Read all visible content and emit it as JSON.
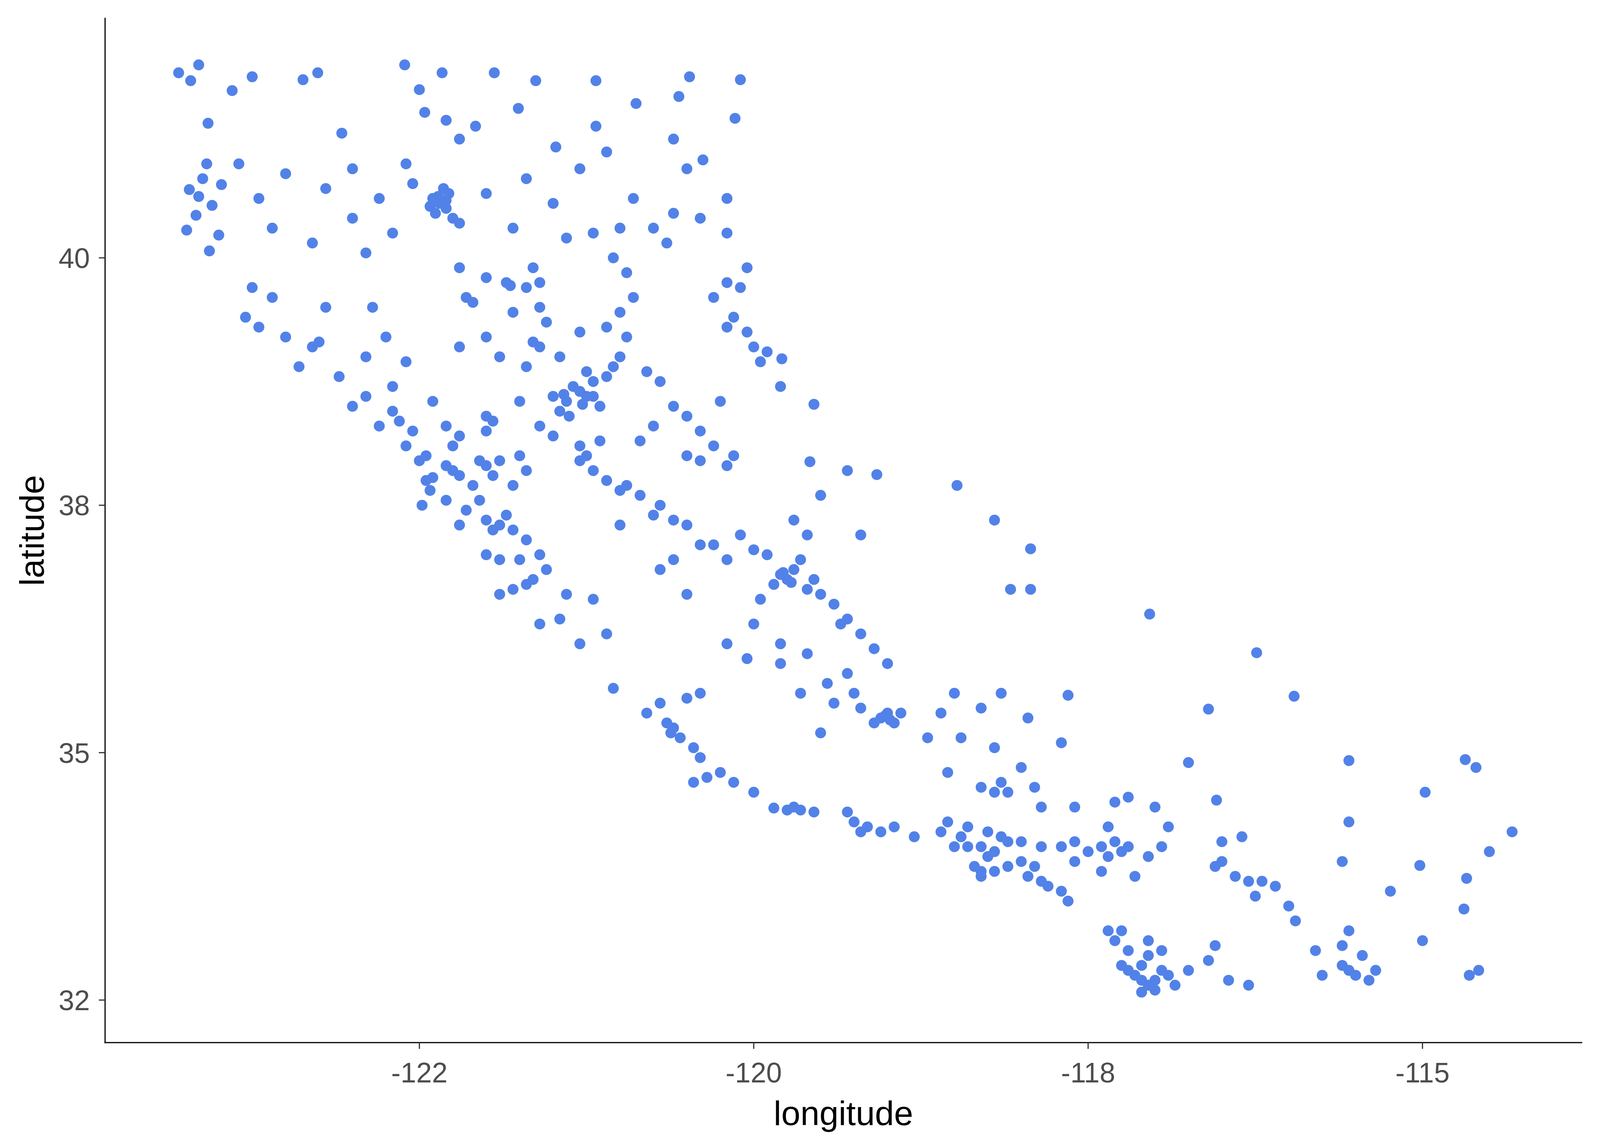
{
  "chart_data": {
    "type": "scatter",
    "x_label": "longitude",
    "y_label": "latitude",
    "color": "#5282e8",
    "marker": "circle",
    "grid": false,
    "xlim": [
      -124.85,
      -113.81
    ],
    "ylim": [
      32.07,
      42.42
    ],
    "xticks": [
      {
        "value": -122.5,
        "label": "-122"
      },
      -120,
      {
        "value": -117.5,
        "label": "-118"
      },
      -115
    ],
    "yticks": [
      {
        "value": 32.5,
        "label": "32"
      },
      35,
      {
        "value": 37.5,
        "label": "38"
      },
      40
    ],
    "x": [
      -124.3,
      -124.21,
      -124.15,
      -124.22,
      -124.09,
      -124.05,
      -124.17,
      -124.24,
      -123.98,
      -123.9,
      -124.08,
      -124.07,
      -124.0,
      -124.12,
      -124.15,
      -123.75,
      -123.37,
      -123.26,
      -122.61,
      -122.33,
      -121.94,
      -121.63,
      -121.18,
      -120.48,
      -120.1,
      -122.46,
      -122.3,
      -121.76,
      -122.08,
      -121.18,
      -120.88,
      -120.56,
      -120.14,
      -123.08,
      -121.48,
      -121.1,
      -120.38,
      -122.5,
      -122.2,
      -122.4,
      -122.35,
      -122.3,
      -122.38,
      -122.28,
      -122.25,
      -122.32,
      -122.2,
      -122.42,
      -122.36,
      -122.3,
      -123.5,
      -123.2,
      -123.0,
      -122.8,
      -122.55,
      -123.6,
      -123.3,
      -122.9,
      -123.7,
      -123.0,
      -122.7,
      -123.85,
      -122.6,
      -122.0,
      -121.7,
      -121.5,
      -121.3,
      -121.2,
      -121.0,
      -120.75,
      -120.6,
      -120.4,
      -120.2,
      -121.8,
      -121.4,
      -120.9,
      -120.6,
      -120.5,
      -120.2,
      -120.65,
      -121.05,
      -120.95,
      -122.0,
      -121.85,
      -121.7,
      -121.6,
      -121.55,
      -121.8,
      -121.65,
      -122.1,
      -121.82,
      -121.6,
      -122.2,
      -122.15,
      -122.0,
      -121.9,
      -121.7,
      -121.75,
      -122.0,
      -121.6,
      -121.5,
      -122.2,
      -121.65,
      -121.6,
      -121.45,
      -121.3,
      -121.1,
      -121.0,
      -120.9,
      -121.3,
      -121.25,
      -121.4,
      -121.35,
      -121.2,
      -121.1,
      -121.05,
      -121.0,
      -121.15,
      -121.45,
      -121.25,
      -120.95,
      -120.8,
      -120.7,
      -121.5,
      -121.42,
      -121.28,
      -121.38,
      -121.2,
      -120.2,
      -120.05,
      -120.0,
      -119.95,
      -120.15,
      -120.3,
      -120.1,
      -119.9,
      -120.05,
      -120.2,
      -123.8,
      -123.7,
      -123.5,
      -123.3,
      -123.4,
      -123.6,
      -123.2,
      -123.25,
      -123.75,
      -123.1,
      -122.9,
      -122.75,
      -122.6,
      -122.85,
      -122.7,
      -122.8,
      -122.55,
      -122.3,
      -122.25,
      -122.45,
      -122.6,
      -122.9,
      -123.0,
      -122.7,
      -122.4,
      -122.65,
      -122.5,
      -122.2,
      -122.0,
      -121.95,
      -122.45,
      -122.4,
      -122.2,
      -122.1,
      -122.25,
      -122.0,
      -121.95,
      -122.05,
      -122.3,
      -122.15,
      -122.0,
      -121.9,
      -121.85,
      -121.8,
      -121.95,
      -122.0,
      -121.9,
      -121.75,
      -121.65,
      -121.8,
      -121.9,
      -121.7,
      -121.55,
      -121.6,
      -121.7,
      -122.42,
      -122.05,
      -121.8,
      -121.9,
      -122.3,
      -122.48,
      -122.2,
      -121.75,
      -121.7,
      -121.3,
      -121.25,
      -121.2,
      -121.0,
      -120.95,
      -120.85,
      -121.1,
      -120.7,
      -120.75,
      -120.6,
      -121.0,
      -121.3,
      -121.15,
      -120.6,
      -120.4,
      -120.3,
      -120.5,
      -120.25,
      -120.5,
      -120.4,
      -120.2,
      -120.15,
      -120.75,
      -120.85,
      -119.8,
      -119.55,
      -119.58,
      -119.79,
      -119.08,
      -119.8,
      -119.75,
      -119.7,
      -119.85,
      -119.6,
      -119.65,
      -119.9,
      -120.0,
      -119.5,
      -119.4,
      -119.35,
      -119.3,
      -119.2,
      -120.2,
      -119.95,
      -120.3,
      -120.5,
      -119.78,
      -119.72,
      -119.55,
      -119.7,
      -119.5,
      -119.3,
      -119.6,
      -119.2,
      -118.48,
      -118.2,
      -117.93,
      -117.93,
      -118.08,
      -117.04,
      -120.4,
      -120.1,
      -120.6,
      -120.7,
      -120.5,
      -120.0,
      -119.8,
      -119.6,
      -119.8,
      -119.65,
      -119.45,
      -120.2,
      -120.05,
      -119.1,
      -119.0,
      -121.6,
      -121.45,
      -121.3,
      -121.1,
      -121.4,
      -121.2,
      -119.05,
      -119.0,
      -118.95,
      -119.1,
      -119.2,
      -118.9,
      -119.3,
      -119.25,
      -119.5,
      -119.4,
      -119.02,
      -118.98,
      -118.45,
      -118.2,
      -117.7,
      -118.6,
      -118.15,
      -118.3,
      -117.95,
      -118.5,
      -118.7,
      -118.0,
      -117.65,
      -118.15,
      -118.1,
      -118.2,
      -117.9,
      -118.3,
      -118.55,
      -120.65,
      -120.6,
      -120.55,
      -120.45,
      -120.4,
      -120.7,
      -120.8,
      -121.05,
      -120.4,
      -120.25,
      -120.35,
      -120.45,
      -120.15,
      -120.62,
      -120.5,
      -119.85,
      -119.75,
      -119.65,
      -119.55,
      -119.7,
      -120.0,
      -119.25,
      -119.2,
      -119.15,
      -119.05,
      -118.95,
      -119.3,
      -118.8,
      -118.6,
      -118.5,
      -118.4,
      -118.3,
      -118.25,
      -118.2,
      -118.35,
      -118.3,
      -118.2,
      -118.1,
      -118.0,
      -117.9,
      -117.95,
      -117.85,
      -117.8,
      -117.7,
      -117.65,
      -118.1,
      -118.0,
      -117.85,
      -117.7,
      -117.6,
      -117.5,
      -117.4,
      -117.3,
      -117.25,
      -117.35,
      -117.2,
      -117.6,
      -118.45,
      -118.25,
      -118.15,
      -118.55,
      -118.4,
      -118.3,
      -117.4,
      -117.15,
      -117.05,
      -116.95,
      -117.85,
      -117.6,
      -117.3,
      -117.35,
      -117.0,
      -117.2,
      -116.9,
      -116.55,
      -116.4,
      -116.3,
      -116.2,
      -116.5,
      -116.1,
      -116.25,
      -116.5,
      -116.35,
      -115.55,
      -115.5,
      -115.4,
      -115.6,
      -115.45,
      -115.75,
      -115.35,
      -115.6,
      -115.8,
      -115.95,
      -116.0,
      -115.55,
      -117.15,
      -117.1,
      -117.05,
      -117.0,
      -117.2,
      -117.1,
      -117.05,
      -117.2,
      -117.3,
      -117.25,
      -117.35,
      -116.95,
      -116.9,
      -117.0,
      -116.85,
      -117.1,
      -117.25,
      -116.95,
      -116.75,
      -117.05,
      -116.6,
      -116.45,
      -116.3,
      -116.55,
      -114.69,
      -114.67,
      -114.65,
      -114.58,
      -114.33,
      -114.5,
      -114.68,
      -114.6,
      -114.98,
      -115.02,
      -115.24,
      -115.0,
      -115.55,
      -115.55,
      -115.6,
      -115.96,
      -116.24,
      -116.6,
      -116.54,
      -116.75
    ],
    "values": [
      41.87,
      41.79,
      41.95,
      40.69,
      40.95,
      40.53,
      40.43,
      40.28,
      40.74,
      41.69,
      41.36,
      40.07,
      40.23,
      40.8,
      40.62,
      41.83,
      41.8,
      41.87,
      41.95,
      41.87,
      41.87,
      41.79,
      41.79,
      41.83,
      41.8,
      41.47,
      41.39,
      41.51,
      41.33,
      41.33,
      41.56,
      41.63,
      41.41,
      41.26,
      41.12,
      41.07,
      40.99,
      41.7,
      41.2,
      40.6,
      40.55,
      40.5,
      40.45,
      40.65,
      40.4,
      40.7,
      40.35,
      40.52,
      40.62,
      40.58,
      40.85,
      40.7,
      40.9,
      40.6,
      40.75,
      40.3,
      40.15,
      40.05,
      40.6,
      40.4,
      40.25,
      40.95,
      40.95,
      40.65,
      40.8,
      40.55,
      40.9,
      40.25,
      40.3,
      40.3,
      40.45,
      40.4,
      40.25,
      40.3,
      40.2,
      40.6,
      41.2,
      40.9,
      40.6,
      40.15,
      40.0,
      39.85,
      39.8,
      39.75,
      39.7,
      39.5,
      39.35,
      39.45,
      39.9,
      39.55,
      39.72,
      39.75,
      39.9,
      39.6,
      39.2,
      39.0,
      38.9,
      38.55,
      38.4,
      38.3,
      38.2,
      39.1,
      39.15,
      39.1,
      39.0,
      39.25,
      39.3,
      39.45,
      39.6,
      38.65,
      38.6,
      38.55,
      38.7,
      38.75,
      38.8,
      38.9,
      39.0,
      38.5,
      38.45,
      38.85,
      39.2,
      38.85,
      38.75,
      38.6,
      38.62,
      38.52,
      38.4,
      38.6,
      39.3,
      39.25,
      39.1,
      38.95,
      39.4,
      39.6,
      39.7,
      39.05,
      39.9,
      39.75,
      39.4,
      39.3,
      39.2,
      39.1,
      38.9,
      39.6,
      39.5,
      39.15,
      39.7,
      38.8,
      39.0,
      39.2,
      38.95,
      39.5,
      38.45,
      38.3,
      38.25,
      38.3,
      38.1,
      38.0,
      38.1,
      38.6,
      38.5,
      38.7,
      38.55,
      38.35,
      37.95,
      38.2,
      38.25,
      38.35,
      37.75,
      37.78,
      37.8,
      37.7,
      37.85,
      37.9,
      37.8,
      37.95,
      37.55,
      37.45,
      37.35,
      37.3,
      37.4,
      37.25,
      37.25,
      37.0,
      36.95,
      36.95,
      36.75,
      36.65,
      36.6,
      36.7,
      36.85,
      37.0,
      37.15,
      37.65,
      37.55,
      37.7,
      37.95,
      37.9,
      37.5,
      37.3,
      38.0,
      37.85,
      37.95,
      38.0,
      37.85,
      37.65,
      37.7,
      37.6,
      37.75,
      37.5,
      37.4,
      37.35,
      37.3,
      38.1,
      38.15,
      38.5,
      38.25,
      38.1,
      38.4,
      38.55,
      38.0,
      37.95,
      37.9,
      38.0,
      38.3,
      38.15,
      38.7,
      38.52,
      37.94,
      38.98,
      37.81,
      36.8,
      36.75,
      36.85,
      36.7,
      36.65,
      36.95,
      37.0,
      37.05,
      36.6,
      36.5,
      36.3,
      36.35,
      36.2,
      36.95,
      36.55,
      37.1,
      37.3,
      36.82,
      36.72,
      36.75,
      37.35,
      37.6,
      37.85,
      37.2,
      37.2,
      37.7,
      37.35,
      37.06,
      36.65,
      36.65,
      36.4,
      37.1,
      37.2,
      36.95,
      36.85,
      36.6,
      36.3,
      36.1,
      36.0,
      35.9,
      35.6,
      35.7,
      36.1,
      35.95,
      36.05,
      35.9,
      36.3,
      36.35,
      36.1,
      36.2,
      36.6,
      36.55,
      35.35,
      35.4,
      35.3,
      35.3,
      35.45,
      35.4,
      35.8,
      35.6,
      35.2,
      35.5,
      35.37,
      35.33,
      35.15,
      35.05,
      35.1,
      35.4,
      35.6,
      35.45,
      35.35,
      35.6,
      35.15,
      34.85,
      35.58,
      34.7,
      34.6,
      34.6,
      34.65,
      34.65,
      34.8,
      35.3,
      35.25,
      35.15,
      35.05,
      34.95,
      35.5,
      35.4,
      35.65,
      35.6,
      34.8,
      34.75,
      34.7,
      34.7,
      35.2,
      35.55,
      34.44,
      34.42,
      34.42,
      34.4,
      34.45,
      34.6,
      34.3,
      34.2,
      34.25,
      34.2,
      34.25,
      34.4,
      34.15,
      34.2,
      34.05,
      34.05,
      34.05,
      33.95,
      34.0,
      33.85,
      33.8,
      33.8,
      33.85,
      33.9,
      33.85,
      33.75,
      33.7,
      33.65,
      33.6,
      33.5,
      34.1,
      34.1,
      34.05,
      34.05,
      34.1,
      34.0,
      34.05,
      34.1,
      34.0,
      33.95,
      34.05,
      33.9,
      34.15,
      34.2,
      34.15,
      34.3,
      34.25,
      33.75,
      33.8,
      33.75,
      33.95,
      34.05,
      34.45,
      34.45,
      34.5,
      34.25,
      34.45,
      34.55,
      34.25,
      33.85,
      33.75,
      33.7,
      33.7,
      33.9,
      33.65,
      33.55,
      34.1,
      34.15,
      32.8,
      32.75,
      32.7,
      32.85,
      32.95,
      32.75,
      32.8,
      33.05,
      33.0,
      33.3,
      33.45,
      33.2,
      32.75,
      32.7,
      32.65,
      32.6,
      32.8,
      32.85,
      32.95,
      33.0,
      33.1,
      33.2,
      33.2,
      32.8,
      32.75,
      32.7,
      32.65,
      32.58,
      32.85,
      33.0,
      32.8,
      33.1,
      32.9,
      32.7,
      32.65,
      33.05,
      33.42,
      33.73,
      32.75,
      32.8,
      34.2,
      34.0,
      34.93,
      34.85,
      34.6,
      33.86,
      33.6,
      33.1,
      34.3,
      34.92,
      33.9,
      35.57,
      36.01,
      35.44,
      34.52,
      34.9
    ]
  }
}
